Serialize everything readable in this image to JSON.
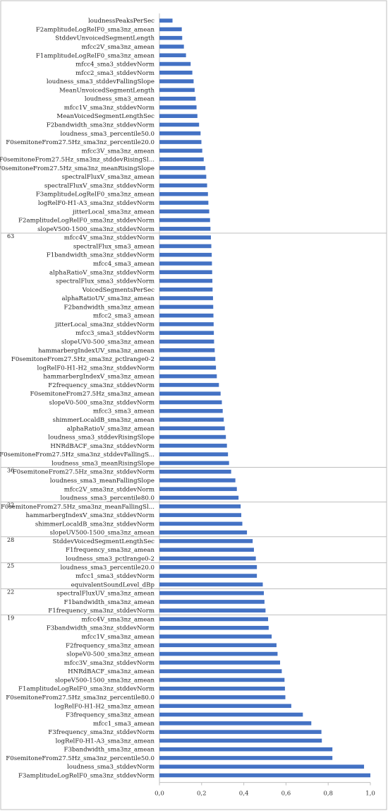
{
  "chart_data": {
    "type": "bar",
    "orientation": "horizontal",
    "bar_color": "#4472C4",
    "xlim": [
      0,
      1.0
    ],
    "x_ticks": [
      "0,0",
      "0,2",
      "0,4",
      "0,6",
      "0,8",
      "1,0"
    ],
    "grid": false,
    "categories": [
      "loudnessPeaksPerSec",
      "F2amplitudeLogRelF0_sma3nz_amean",
      "StddevUnvoicedSegmentLength",
      "mfcc2V_sma3nz_amean",
      "F1amplitudeLogRelF0_sma3nz_amean",
      "mfcc4_sma3_stddevNorm",
      "mfcc2_sma3_stddevNorm",
      "loudness_sma3_stddevFallingSlope",
      "MeanUnvoicedSegmentLength",
      "loudness_sma3_amean",
      "mfcc1V_sma3nz_stddevNorm",
      "MeanVoicedSegmentLengthSec",
      "F2bandwidth_sma3nz_stddevNorm",
      "loudness_sma3_percentile50.0",
      "F0semitoneFrom27.5Hz_sma3nz_percentile20.0",
      "mfcc3V_sma3nz_amean",
      "F0semitoneFrom27.5Hz_sma3nz_stddevRisingSl...",
      "F0semitoneFrom27.5Hz_sma3nz_meanRisingSlope",
      "spectralFluxV_sma3nz_amean",
      "spectralFluxV_sma3nz_stddevNorm",
      "F3amplitudeLogRelF0_sma3nz_amean",
      "logRelF0-H1-A3_sma3nz_stddevNorm",
      "jitterLocal_sma3nz_amean",
      "F2amplitudeLogRelF0_sma3nz_stddevNorm",
      "slopeV500-1500_sma3nz_stddevNorm",
      "mfcc4V_sma3nz_stddevNorm",
      "spectralFlux_sma3_amean",
      "F1bandwidth_sma3nz_stddevNorm",
      "mfcc4_sma3_amean",
      "alphaRatioV_sma3nz_stddevNorm",
      "spectralFlux_sma3_stddevNorm",
      "VoicedSegmentsPerSec",
      "alphaRatioUV_sma3nz_amean",
      "F2bandwidth_sma3nz_amean",
      "mfcc2_sma3_amean",
      "jitterLocal_sma3nz_stddevNorm",
      "mfcc3_sma3_stddevNorm",
      "slopeUV0-500_sma3nz_amean",
      "hammarbergIndexUV_sma3nz_amean",
      "F0semitoneFrom27.5Hz_sma3nz_pctlrange0-2",
      "logRelF0-H1-H2_sma3nz_stddevNorm",
      "hammarbergIndexV_sma3nz_amean",
      "F2frequency_sma3nz_stddevNorm",
      "F0semitoneFrom27.5Hz_sma3nz_amean",
      "slopeV0-500_sma3nz_stddevNorm",
      "mfcc3_sma3_amean",
      "shimmerLocaldB_sma3nz_amean",
      "alphaRatioV_sma3nz_amean",
      "loudness_sma3_stddevRisingSlope",
      "HNRdBACF_sma3nz_stddevNorm",
      "F0semitoneFrom27.5Hz_sma3nz_stddevFallingS...",
      "loudness_sma3_meanRisingSlope",
      "F0semitoneFrom27.5Hz_sma3nz_stddevNorm",
      "loudness_sma3_meanFallingSlope",
      "mfcc2V_sma3nz_stddevNorm",
      "loudness_sma3_percentile80.0",
      "F0semitoneFrom27.5Hz_sma3nz_meanFallingSl...",
      "hammarbergIndexV_sma3nz_stddevNorm",
      "shimmerLocaldB_sma3nz_stddevNorm",
      "slopeUV500-1500_sma3nz_amean",
      "StddevVoicedSegmentLengthSec",
      "F1frequency_sma3nz_amean",
      "loudness_sma3_pctlrange0-2",
      "loudness_sma3_percentile20.0",
      "mfcc1_sma3_stddevNorm",
      "equivalentSoundLevel_dBp",
      "spectralFluxUV_sma3nz_amean",
      "F1bandwidth_sma3nz_amean",
      "F1frequency_sma3nz_stddevNorm",
      "mfcc4V_sma3nz_amean",
      "F3bandwidth_sma3nz_stddevNorm",
      "mfcc1V_sma3nz_amean",
      "F2frequency_sma3nz_amean",
      "slopeV0-500_sma3nz_amean",
      "mfcc3V_sma3nz_stddevNorm",
      "HNRdBACF_sma3nz_amean",
      "slopeV500-1500_sma3nz_amean",
      "F1amplitudeLogRelF0_sma3nz_stddevNorm",
      "F0semitoneFrom27.5Hz_sma3nz_percentile80.0",
      "logRelF0-H1-H2_sma3nz_amean",
      "F3frequency_sma3nz_amean",
      "mfcc1_sma3_amean",
      "F3frequency_sma3nz_stddevNorm",
      "logRelF0-H1-A3_sma3nz_amean",
      "F3bandwidth_sma3nz_amean",
      "F0semitoneFrom27.5Hz_sma3nz_percentile50.0",
      "loudness_sma3_stddevNorm",
      "F3amplitudeLogRelF0_sma3nz_stddevNorm"
    ],
    "values": [
      0.062,
      0.106,
      0.108,
      0.116,
      0.126,
      0.148,
      0.156,
      0.162,
      0.167,
      0.172,
      0.176,
      0.18,
      0.188,
      0.195,
      0.199,
      0.203,
      0.21,
      0.218,
      0.222,
      0.226,
      0.23,
      0.232,
      0.236,
      0.24,
      0.242,
      0.244,
      0.246,
      0.248,
      0.249,
      0.25,
      0.251,
      0.252,
      0.254,
      0.255,
      0.256,
      0.257,
      0.258,
      0.259,
      0.262,
      0.265,
      0.268,
      0.272,
      0.282,
      0.29,
      0.296,
      0.3,
      0.305,
      0.31,
      0.315,
      0.32,
      0.325,
      0.33,
      0.34,
      0.36,
      0.367,
      0.375,
      0.385,
      0.388,
      0.393,
      0.415,
      0.442,
      0.448,
      0.457,
      0.462,
      0.462,
      0.49,
      0.495,
      0.498,
      0.503,
      0.515,
      0.518,
      0.532,
      0.555,
      0.56,
      0.572,
      0.58,
      0.593,
      0.595,
      0.597,
      0.625,
      0.68,
      0.72,
      0.768,
      0.77,
      0.82,
      0.82,
      0.97,
      1.0
    ],
    "group_labels": [
      {
        "label": "63",
        "after_index": 24
      },
      {
        "label": "36",
        "after_index": 51
      },
      {
        "label": "32",
        "after_index": 55
      },
      {
        "label": "28",
        "after_index": 59
      },
      {
        "label": "25",
        "after_index": 62
      },
      {
        "label": "22",
        "after_index": 65
      },
      {
        "label": "19",
        "after_index": 68
      }
    ]
  }
}
